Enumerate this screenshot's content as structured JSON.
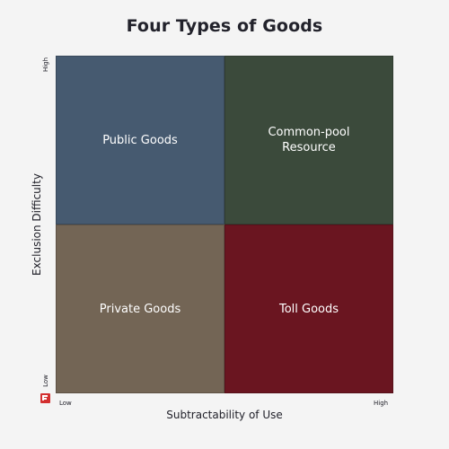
{
  "title": "Four Types of Goods",
  "y_axis": {
    "label": "Exclusion Difficulty",
    "high": "High",
    "low": "Low"
  },
  "x_axis": {
    "label": "Subtractability of Use",
    "low": "Low",
    "high": "High"
  },
  "quadrants": [
    {
      "label": "Public Goods",
      "color": "#465a70"
    },
    {
      "label": "Common-pool\nResource",
      "color": "#3b4a3b"
    },
    {
      "label": "Private Goods",
      "color": "#736555"
    },
    {
      "label": "Toll Goods",
      "color": "#6a1520"
    }
  ],
  "logo_color": "#d32f2f"
}
